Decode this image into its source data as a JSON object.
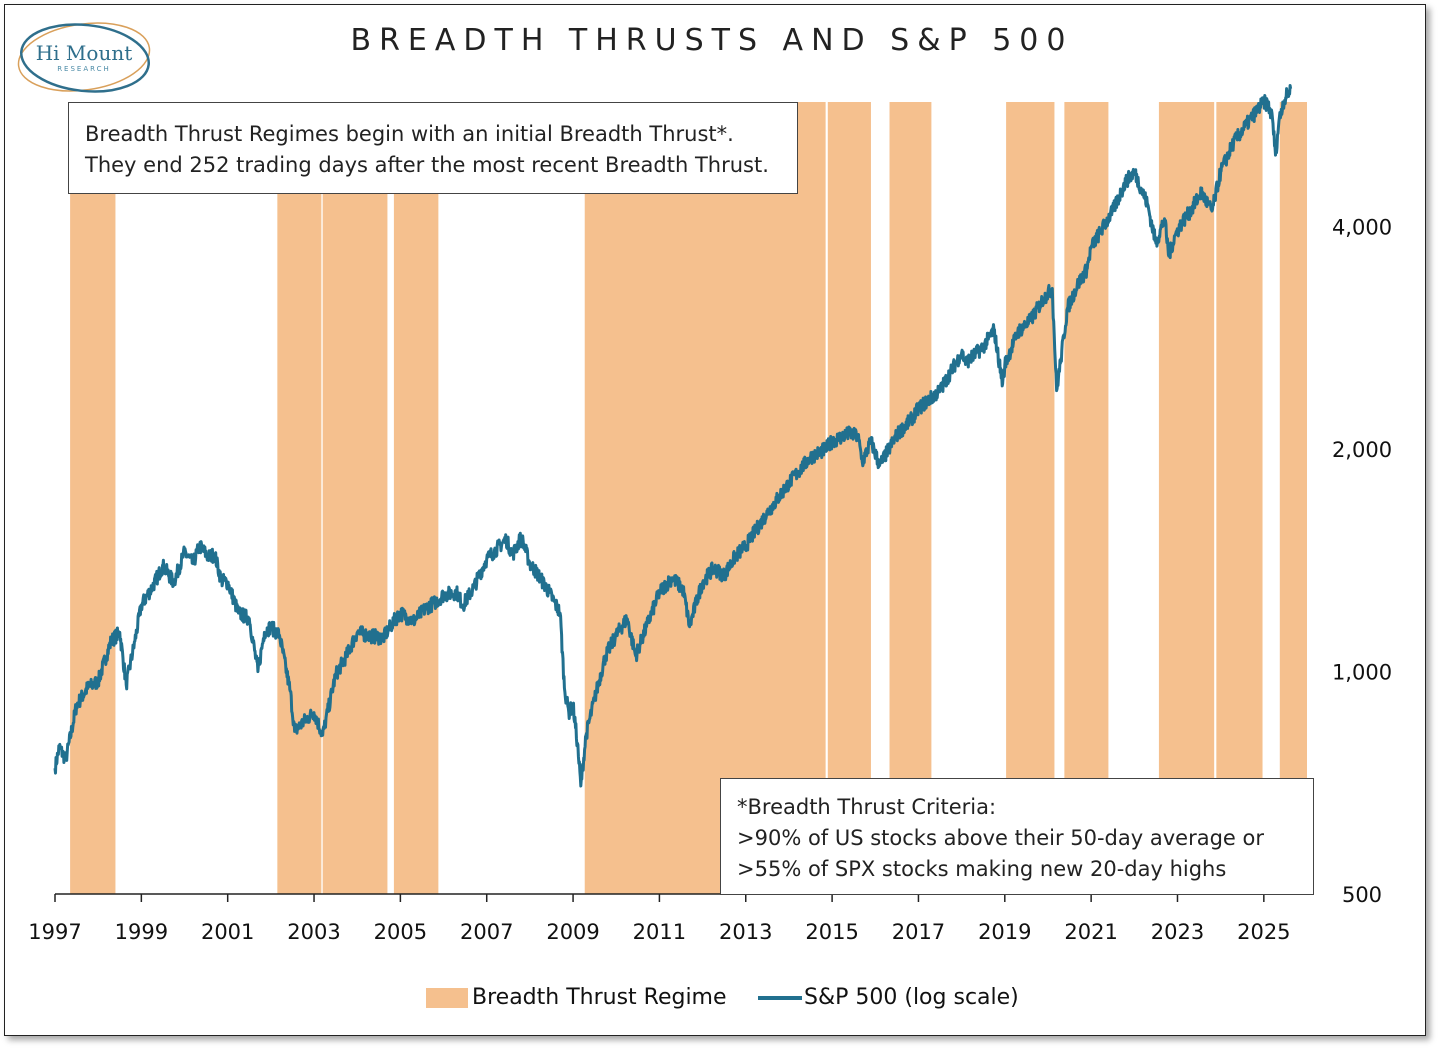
{
  "logo": {
    "main": "Hi Mount",
    "sub": "RESEARCH"
  },
  "chart_data": {
    "type": "line",
    "title": "BREADTH THRUSTS AND S&P 500",
    "y_scale": "log",
    "ylim": [
      500,
      5900
    ],
    "y_ticks": [
      500,
      1000,
      2000,
      4000
    ],
    "y_tick_labels": [
      "500",
      "1,000",
      "2,000",
      "4,000"
    ],
    "xlim": [
      1997.0,
      2026.0
    ],
    "x_ticks": [
      1997,
      1999,
      2001,
      2003,
      2005,
      2007,
      2009,
      2011,
      2013,
      2015,
      2017,
      2019,
      2021,
      2023,
      2025
    ],
    "x_tick_labels": [
      "1997",
      "1999",
      "2001",
      "2003",
      "2005",
      "2007",
      "2009",
      "2011",
      "2013",
      "2015",
      "2017",
      "2019",
      "2021",
      "2023",
      "2025"
    ],
    "series": [
      {
        "name": "S&P 500 (log scale)",
        "color": "#21708f",
        "x": [
          1997.0,
          1997.1,
          1997.25,
          1997.5,
          1997.75,
          1998.0,
          1998.3,
          1998.5,
          1998.65,
          1998.85,
          1999.0,
          1999.25,
          1999.5,
          1999.75,
          2000.0,
          2000.2,
          2000.35,
          2000.55,
          2000.7,
          2000.85,
          2001.0,
          2001.25,
          2001.5,
          2001.7,
          2001.85,
          2002.0,
          2002.2,
          2002.45,
          2002.55,
          2002.8,
          2003.0,
          2003.2,
          2003.5,
          2003.75,
          2004.0,
          2004.25,
          2004.6,
          2004.85,
          2005.0,
          2005.3,
          2005.6,
          2005.8,
          2006.0,
          2006.3,
          2006.45,
          2006.7,
          2007.0,
          2007.2,
          2007.45,
          2007.6,
          2007.8,
          2008.0,
          2008.2,
          2008.45,
          2008.7,
          2008.8,
          2008.9,
          2009.0,
          2009.1,
          2009.18,
          2009.3,
          2009.5,
          2009.75,
          2010.0,
          2010.25,
          2010.45,
          2010.7,
          2011.0,
          2011.3,
          2011.55,
          2011.7,
          2011.85,
          2012.0,
          2012.25,
          2012.5,
          2012.75,
          2013.0,
          2013.5,
          2014.0,
          2014.5,
          2014.85,
          2015.0,
          2015.4,
          2015.6,
          2015.7,
          2015.9,
          2016.1,
          2016.5,
          2016.85,
          2017.0,
          2017.5,
          2018.0,
          2018.1,
          2018.5,
          2018.75,
          2018.95,
          2019.0,
          2019.3,
          2019.6,
          2019.9,
          2020.1,
          2020.2,
          2020.3,
          2020.45,
          2020.7,
          2020.9,
          2021.0,
          2021.5,
          2021.8,
          2022.0,
          2022.3,
          2022.5,
          2022.7,
          2022.8,
          2022.95,
          2023.1,
          2023.3,
          2023.55,
          2023.8,
          2024.0,
          2024.3,
          2024.6,
          2024.8,
          2025.0,
          2025.1,
          2025.2,
          2025.27,
          2025.35,
          2025.45,
          2025.55,
          2025.62
        ],
        "values": [
          740,
          790,
          760,
          900,
          950,
          970,
          1100,
          1130,
          960,
          1100,
          1230,
          1300,
          1390,
          1320,
          1450,
          1400,
          1480,
          1430,
          1440,
          1330,
          1320,
          1200,
          1180,
          1000,
          1130,
          1150,
          1120,
          940,
          830,
          860,
          880,
          820,
          990,
          1050,
          1130,
          1120,
          1110,
          1170,
          1200,
          1170,
          1220,
          1240,
          1270,
          1280,
          1230,
          1300,
          1420,
          1460,
          1510,
          1440,
          1520,
          1400,
          1350,
          1280,
          1200,
          950,
          880,
          900,
          800,
          700,
          820,
          920,
          1050,
          1120,
          1180,
          1050,
          1150,
          1280,
          1340,
          1290,
          1150,
          1240,
          1320,
          1380,
          1350,
          1430,
          1480,
          1640,
          1800,
          1950,
          2000,
          2050,
          2100,
          2080,
          1920,
          2050,
          1900,
          2090,
          2200,
          2270,
          2400,
          2700,
          2620,
          2750,
          2900,
          2450,
          2600,
          2880,
          2990,
          3200,
          3300,
          2400,
          2650,
          3100,
          3350,
          3500,
          3750,
          4200,
          4600,
          4750,
          4300,
          3800,
          4100,
          3650,
          3900,
          4050,
          4200,
          4450,
          4200,
          4750,
          5200,
          5500,
          5700,
          5900,
          5850,
          5600,
          5000,
          5550,
          5900,
          6050,
          6150
        ]
      }
    ],
    "shaded_regions": {
      "name": "Breadth Thrust Regime",
      "color": "#f5c08e",
      "ranges": [
        [
          1997.35,
          1998.4
        ],
        [
          2002.15,
          2003.17
        ],
        [
          2003.2,
          2004.7
        ],
        [
          2004.85,
          2005.88
        ],
        [
          2009.27,
          2014.85
        ],
        [
          2014.9,
          2015.9
        ],
        [
          2016.33,
          2017.3
        ],
        [
          2019.03,
          2020.15
        ],
        [
          2020.38,
          2021.4
        ],
        [
          2022.57,
          2023.85
        ],
        [
          2023.9,
          2024.97
        ],
        [
          2025.37,
          2026.0
        ]
      ]
    },
    "legend": [
      "Breadth Thrust Regime",
      "S&P 500 (log scale)"
    ]
  },
  "annotations": {
    "top_box": [
      "Breadth Thrust Regimes begin with an initial Breadth Thrust*.",
      "They end 252 trading days after the most recent Breadth Thrust."
    ],
    "bottom_box": [
      "*Breadth Thrust Criteria:",
      ">90% of US stocks above their 50-day average or",
      ">55% of SPX stocks making new 20-day highs"
    ]
  }
}
